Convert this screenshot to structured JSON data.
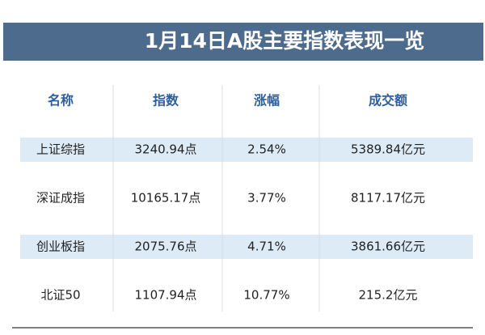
{
  "title": "1月14日A股主要指数表现一览",
  "table": {
    "header": [
      "名称",
      "指数",
      "涨幅",
      "成交额"
    ],
    "rows": [
      [
        "上证综指",
        "3240.94点",
        "2.54%",
        "5389.84亿元"
      ],
      [
        "深证成指",
        "10165.17点",
        "3.77%",
        "8117.17亿元"
      ],
      [
        "创业板指",
        "2075.76点",
        "4.71%",
        "3861.66亿元"
      ],
      [
        "北证50",
        "1107.94点",
        "10.77%",
        "215.2亿元"
      ]
    ]
  }
}
